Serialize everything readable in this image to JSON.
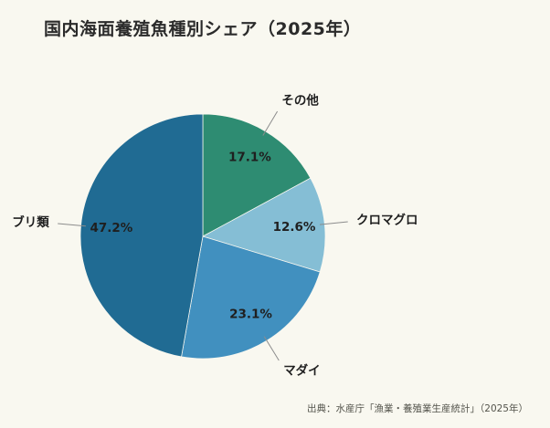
{
  "page": {
    "title": "国内海面養殖魚種別シェア（2025年）",
    "source": "出典：水産庁「漁業・養殖業生産統計」（2025年）",
    "background_color": "#F9F8F0"
  },
  "chart_data": {
    "type": "pie",
    "title": "国内海面養殖魚種別シェア（2025年）",
    "unit": "%",
    "direction": "clockwise",
    "start_angle_deg": 0,
    "total": 100,
    "slices": [
      {
        "id": "others",
        "label": "その他",
        "value": 17.1,
        "value_label": "17.1%",
        "color": "#2E8C72"
      },
      {
        "id": "bluefin-tuna",
        "label": "クロマグロ",
        "value": 12.6,
        "value_label": "12.6%",
        "color": "#85BED5"
      },
      {
        "id": "red-sea-bream",
        "label": "マダイ",
        "value": 23.1,
        "value_label": "23.1%",
        "color": "#4190BF"
      },
      {
        "id": "yellowtail",
        "label": "ブリ類",
        "value": 47.2,
        "value_label": "47.2%",
        "color": "#206B93"
      }
    ],
    "label_text_color": "#1F1F1F",
    "leader_line_color": "#8C8C8C",
    "legend_position": "outside-labels",
    "grid": false
  }
}
